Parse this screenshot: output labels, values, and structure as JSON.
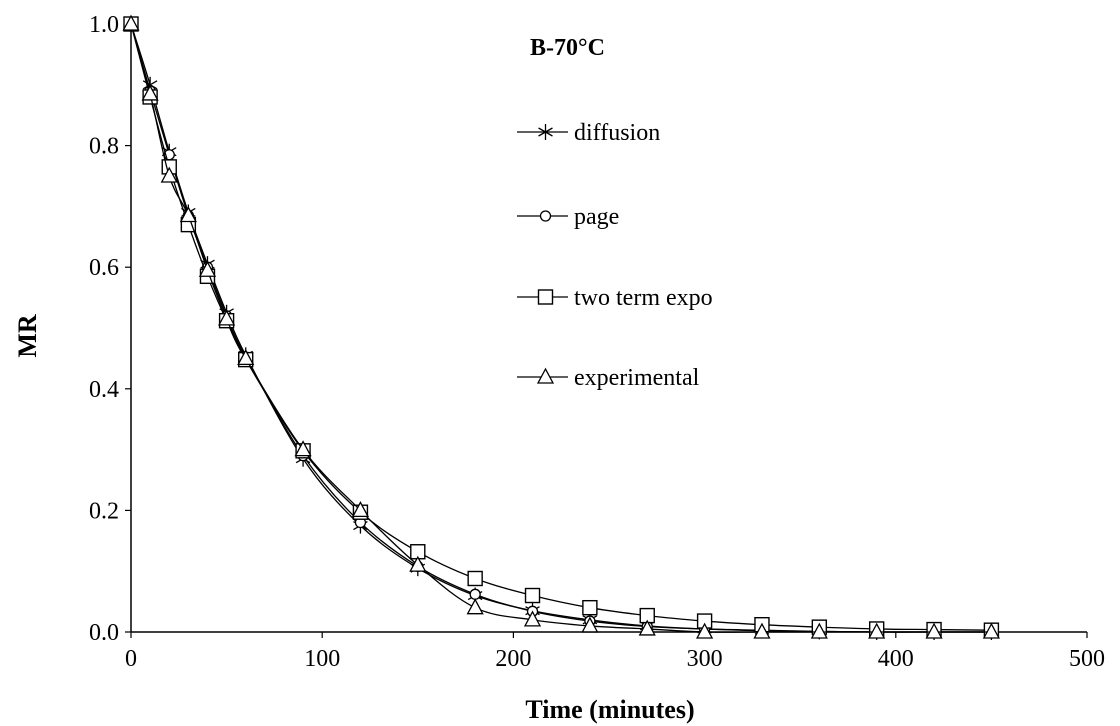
{
  "chart_data": {
    "type": "line",
    "title": "B-70°C",
    "xlabel": "Time (minutes)",
    "ylabel": "MR",
    "xlim": [
      0,
      500
    ],
    "ylim": [
      0,
      1.0
    ],
    "xticks": [
      0,
      100,
      200,
      300,
      400,
      500
    ],
    "yticks": [
      0.0,
      0.2,
      0.4,
      0.6,
      0.8,
      1.0
    ],
    "xtick_labels": [
      "0",
      "100",
      "200",
      "300",
      "400",
      "500"
    ],
    "ytick_labels": [
      "0.0",
      "0.2",
      "0.4",
      "0.6",
      "0.8",
      "1.0"
    ],
    "grid": false,
    "legend_position": "right of title, upper middle",
    "line_color": "#000000",
    "x": [
      0,
      10,
      20,
      30,
      40,
      50,
      60,
      90,
      120,
      150,
      180,
      210,
      240,
      270,
      300,
      330,
      360,
      390,
      420,
      450
    ],
    "series": [
      {
        "name": "diffusion",
        "marker": "asterisk",
        "values": [
          1.0,
          0.9,
          0.79,
          0.69,
          0.605,
          0.525,
          0.455,
          0.285,
          0.175,
          0.105,
          0.06,
          0.035,
          0.02,
          0.01,
          0.005,
          0.003,
          0.001,
          0.0,
          0.0,
          0.0
        ]
      },
      {
        "name": "page",
        "marker": "circle",
        "values": [
          1.0,
          0.89,
          0.785,
          0.685,
          0.6,
          0.52,
          0.452,
          0.29,
          0.18,
          0.108,
          0.062,
          0.034,
          0.018,
          0.009,
          0.005,
          0.002,
          0.001,
          0.0,
          0.0,
          0.0
        ]
      },
      {
        "name": "two term expo",
        "marker": "square",
        "values": [
          1.0,
          0.88,
          0.765,
          0.67,
          0.585,
          0.512,
          0.448,
          0.298,
          0.197,
          0.132,
          0.088,
          0.06,
          0.04,
          0.027,
          0.018,
          0.012,
          0.008,
          0.005,
          0.004,
          0.003
        ]
      },
      {
        "name": "experimental",
        "marker": "triangle",
        "values": [
          1.0,
          0.885,
          0.75,
          0.685,
          0.595,
          0.515,
          0.45,
          0.3,
          0.2,
          0.11,
          0.04,
          0.02,
          0.01,
          0.005,
          0.0,
          0.0,
          0.0,
          0.0,
          0.0,
          0.0
        ]
      }
    ]
  }
}
